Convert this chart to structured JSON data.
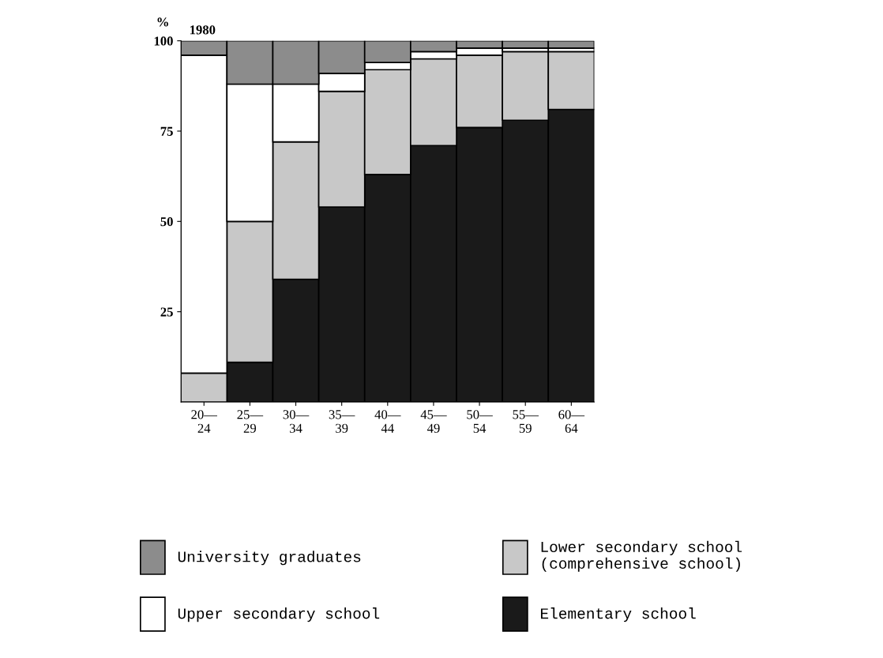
{
  "chart_data": {
    "type": "bar",
    "stacked": true,
    "title": "1980",
    "ylabel": "%",
    "categories": [
      "20—\n24",
      "25—\n29",
      "30—\n34",
      "35—\n39",
      "40—\n44",
      "45—\n49",
      "50—\n54",
      "55—\n59",
      "60—\n64"
    ],
    "series": [
      {
        "name": "Elementary school",
        "color": "#1a1a1a",
        "values": [
          0,
          11,
          34,
          54,
          63,
          71,
          76,
          78,
          81
        ]
      },
      {
        "name": "Lower secondary school\n(comprehensive school)",
        "color": "#c8c8c8",
        "values": [
          8,
          39,
          38,
          32,
          29,
          24,
          20,
          19,
          16
        ]
      },
      {
        "name": "Upper secondary school",
        "color": "#ffffff",
        "values": [
          88,
          38,
          16,
          5,
          2,
          2,
          2,
          1,
          1
        ]
      },
      {
        "name": "University graduates",
        "color": "#8c8c8c",
        "values": [
          4,
          12,
          12,
          9,
          6,
          3,
          2,
          2,
          2
        ]
      }
    ],
    "ylim": [
      0,
      100
    ],
    "yticks": [
      25,
      50,
      75,
      100
    ],
    "grid": false,
    "legend": "bottom"
  }
}
